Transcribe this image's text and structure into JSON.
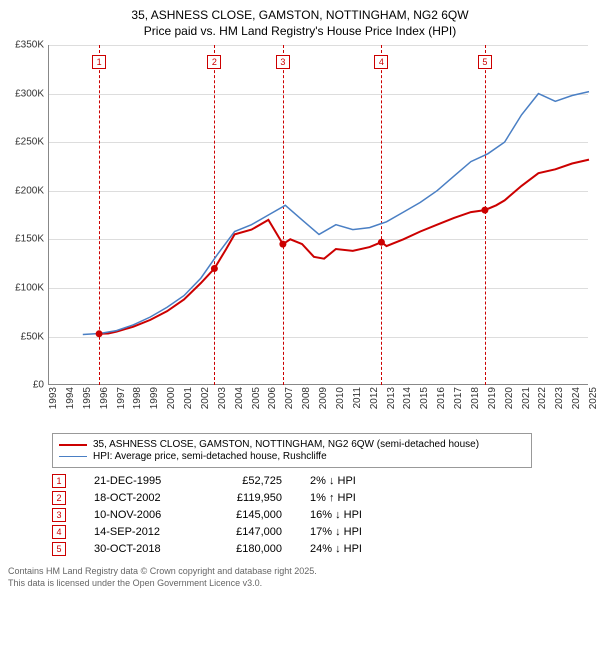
{
  "title_line1": "35, ASHNESS CLOSE, GAMSTON, NOTTINGHAM, NG2 6QW",
  "title_line2": "Price paid vs. HM Land Registry's House Price Index (HPI)",
  "chart": {
    "type": "line",
    "background_color": "#ffffff",
    "grid_color": "#dddddd",
    "axis_color": "#888888",
    "ylim": [
      0,
      350000
    ],
    "ytick_step": 50000,
    "yticks": [
      "£0",
      "£50K",
      "£100K",
      "£150K",
      "£200K",
      "£250K",
      "£300K",
      "£350K"
    ],
    "xlim": [
      1993,
      2025
    ],
    "xticks": [
      1993,
      1994,
      1995,
      1996,
      1997,
      1998,
      1999,
      2000,
      2001,
      2002,
      2003,
      2004,
      2005,
      2006,
      2007,
      2008,
      2009,
      2010,
      2011,
      2012,
      2013,
      2014,
      2015,
      2016,
      2017,
      2018,
      2019,
      2020,
      2021,
      2022,
      2023,
      2024,
      2025
    ],
    "series": [
      {
        "name": "price_paid",
        "label": "35, ASHNESS CLOSE, GAMSTON, NOTTINGHAM, NG2 6QW (semi-detached house)",
        "color": "#cc0000",
        "line_width": 2,
        "points": [
          [
            1995.97,
            52725
          ],
          [
            1996.5,
            53000
          ],
          [
            1997,
            55000
          ],
          [
            1998,
            60000
          ],
          [
            1999,
            67000
          ],
          [
            2000,
            76000
          ],
          [
            2001,
            88000
          ],
          [
            2002,
            105000
          ],
          [
            2002.8,
            119950
          ],
          [
            2003.5,
            140000
          ],
          [
            2004,
            155000
          ],
          [
            2005,
            160000
          ],
          [
            2006,
            170000
          ],
          [
            2006.86,
            145000
          ],
          [
            2007.3,
            150000
          ],
          [
            2008,
            145000
          ],
          [
            2008.7,
            132000
          ],
          [
            2009.3,
            130000
          ],
          [
            2010,
            140000
          ],
          [
            2011,
            138000
          ],
          [
            2012,
            142000
          ],
          [
            2012.7,
            147000
          ],
          [
            2013,
            143000
          ],
          [
            2014,
            150000
          ],
          [
            2015,
            158000
          ],
          [
            2016,
            165000
          ],
          [
            2017,
            172000
          ],
          [
            2018,
            178000
          ],
          [
            2018.83,
            180000
          ],
          [
            2019.5,
            185000
          ],
          [
            2020,
            190000
          ],
          [
            2021,
            205000
          ],
          [
            2022,
            218000
          ],
          [
            2023,
            222000
          ],
          [
            2024,
            228000
          ],
          [
            2025,
            232000
          ]
        ]
      },
      {
        "name": "hpi",
        "label": "HPI: Average price, semi-detached house, Rushcliffe",
        "color": "#4a7fc4",
        "line_width": 1.5,
        "points": [
          [
            1995,
            52000
          ],
          [
            1996,
            53000
          ],
          [
            1997,
            56000
          ],
          [
            1998,
            62000
          ],
          [
            1999,
            70000
          ],
          [
            2000,
            80000
          ],
          [
            2001,
            92000
          ],
          [
            2002,
            110000
          ],
          [
            2003,
            135000
          ],
          [
            2004,
            158000
          ],
          [
            2005,
            165000
          ],
          [
            2006,
            175000
          ],
          [
            2007,
            185000
          ],
          [
            2008,
            170000
          ],
          [
            2009,
            155000
          ],
          [
            2010,
            165000
          ],
          [
            2011,
            160000
          ],
          [
            2012,
            162000
          ],
          [
            2013,
            168000
          ],
          [
            2014,
            178000
          ],
          [
            2015,
            188000
          ],
          [
            2016,
            200000
          ],
          [
            2017,
            215000
          ],
          [
            2018,
            230000
          ],
          [
            2019,
            238000
          ],
          [
            2020,
            250000
          ],
          [
            2021,
            278000
          ],
          [
            2022,
            300000
          ],
          [
            2023,
            292000
          ],
          [
            2024,
            298000
          ],
          [
            2025,
            302000
          ]
        ]
      }
    ],
    "events": [
      {
        "n": "1",
        "x": 1995.97
      },
      {
        "n": "2",
        "x": 2002.8
      },
      {
        "n": "3",
        "x": 2006.86
      },
      {
        "n": "4",
        "x": 2012.7
      },
      {
        "n": "5",
        "x": 2018.83
      }
    ],
    "event_line_color": "#cc0000",
    "event_badge_border": "#cc0000",
    "event_marker_color": "#cc0000"
  },
  "legend_items": [
    {
      "color": "#cc0000",
      "width": 2,
      "key": "chart.series.0.label"
    },
    {
      "color": "#4a7fc4",
      "width": 1.5,
      "key": "chart.series.1.label"
    }
  ],
  "transactions": [
    {
      "n": "1",
      "date": "21-DEC-1995",
      "price": "£52,725",
      "diff": "2% ↓ HPI"
    },
    {
      "n": "2",
      "date": "18-OCT-2002",
      "price": "£119,950",
      "diff": "1% ↑ HPI"
    },
    {
      "n": "3",
      "date": "10-NOV-2006",
      "price": "£145,000",
      "diff": "16% ↓ HPI"
    },
    {
      "n": "4",
      "date": "14-SEP-2012",
      "price": "£147,000",
      "diff": "17% ↓ HPI"
    },
    {
      "n": "5",
      "date": "30-OCT-2018",
      "price": "£180,000",
      "diff": "24% ↓ HPI"
    }
  ],
  "footer_line1": "Contains HM Land Registry data © Crown copyright and database right 2025.",
  "footer_line2": "This data is licensed under the Open Government Licence v3.0."
}
